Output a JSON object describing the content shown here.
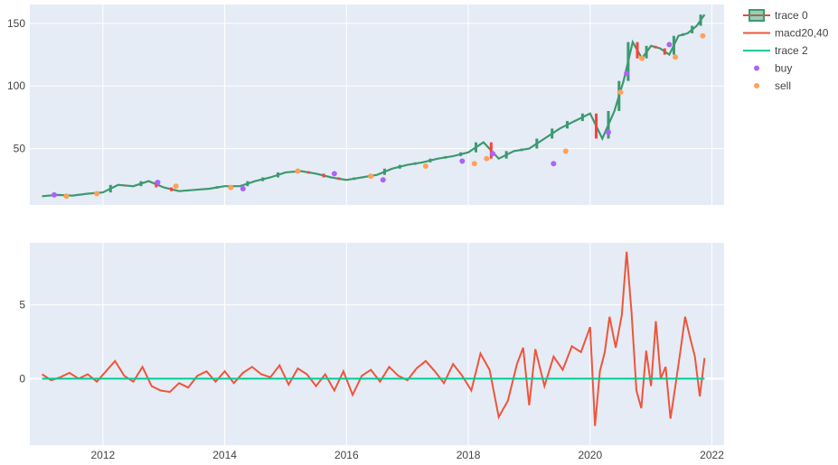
{
  "chart_data": [
    {
      "type": "line",
      "panel": "price",
      "x_ticks": [
        "2012",
        "2014",
        "2016",
        "2018",
        "2020",
        "2022"
      ],
      "y_ticks": [
        50,
        100,
        150
      ],
      "xlim": [
        2010.8,
        2022.2
      ],
      "ylim": [
        5,
        165
      ],
      "grid": true,
      "series": [
        {
          "name": "trace 0",
          "kind": "candlestick",
          "color_up": "#3d9970",
          "color_down": "#ff4136",
          "x": [
            2011.0,
            2011.25,
            2011.5,
            2011.75,
            2012.0,
            2012.25,
            2012.5,
            2012.75,
            2013.0,
            2013.25,
            2013.5,
            2013.75,
            2014.0,
            2014.25,
            2014.5,
            2014.75,
            2015.0,
            2015.25,
            2015.5,
            2015.75,
            2016.0,
            2016.25,
            2016.5,
            2016.75,
            2017.0,
            2017.25,
            2017.5,
            2017.75,
            2018.0,
            2018.25,
            2018.5,
            2018.75,
            2019.0,
            2019.25,
            2019.5,
            2019.75,
            2020.0,
            2020.2,
            2020.4,
            2020.55,
            2020.7,
            2020.85,
            2021.0,
            2021.15,
            2021.3,
            2021.45,
            2021.6,
            2021.75,
            2021.88
          ],
          "values": [
            12,
            13,
            12.5,
            14,
            15,
            21,
            20,
            24,
            19,
            16,
            17,
            18,
            20,
            20,
            24,
            27,
            31,
            32,
            30,
            27,
            25,
            27,
            29,
            34,
            37,
            39,
            42,
            44,
            47,
            55,
            42,
            48,
            50,
            58,
            66,
            72,
            78,
            58,
            80,
            104,
            135,
            122,
            132,
            130,
            125,
            140,
            142,
            148,
            157
          ]
        },
        {
          "name": "buy",
          "kind": "markers",
          "color": "#ab63fa",
          "x": [
            2011.2,
            2012.9,
            2014.3,
            2015.8,
            2016.6,
            2017.9,
            2018.4,
            2019.4,
            2020.3,
            2020.6,
            2021.3
          ],
          "values": [
            13,
            23,
            18,
            30,
            25,
            40,
            46,
            38,
            63,
            110,
            133
          ]
        },
        {
          "name": "sell",
          "kind": "markers",
          "color": "#ffa15a",
          "x": [
            2011.4,
            2011.9,
            2013.2,
            2014.1,
            2015.2,
            2016.4,
            2017.3,
            2018.1,
            2018.3,
            2019.6,
            2020.5,
            2020.85,
            2021.4,
            2021.85
          ],
          "values": [
            12,
            14,
            20,
            19,
            32,
            28,
            36,
            38,
            42,
            48,
            95,
            122,
            123,
            140
          ]
        }
      ]
    },
    {
      "type": "line",
      "panel": "indicator",
      "x_ticks": [
        "2012",
        "2014",
        "2016",
        "2018",
        "2020",
        "2022"
      ],
      "y_ticks": [
        0,
        5
      ],
      "xlim": [
        2010.8,
        2022.2
      ],
      "ylim": [
        -4.5,
        9.2
      ],
      "grid": true,
      "series": [
        {
          "name": "macd20,40",
          "color": "#ef553b",
          "x": [
            2011.0,
            2011.15,
            2011.3,
            2011.45,
            2011.6,
            2011.75,
            2011.9,
            2012.05,
            2012.2,
            2012.35,
            2012.5,
            2012.65,
            2012.8,
            2012.95,
            2013.1,
            2013.25,
            2013.4,
            2013.55,
            2013.7,
            2013.85,
            2014.0,
            2014.15,
            2014.3,
            2014.45,
            2014.6,
            2014.75,
            2014.9,
            2015.05,
            2015.2,
            2015.35,
            2015.5,
            2015.65,
            2015.8,
            2015.95,
            2016.1,
            2016.25,
            2016.4,
            2016.55,
            2016.7,
            2016.85,
            2017.0,
            2017.15,
            2017.3,
            2017.45,
            2017.6,
            2017.75,
            2017.9,
            2018.05,
            2018.2,
            2018.35,
            2018.5,
            2018.65,
            2018.8,
            2018.9,
            2019.0,
            2019.1,
            2019.25,
            2019.4,
            2019.55,
            2019.7,
            2019.85,
            2020.0,
            2020.08,
            2020.16,
            2020.24,
            2020.32,
            2020.42,
            2020.52,
            2020.6,
            2020.68,
            2020.76,
            2020.84,
            2020.92,
            2021.0,
            2021.08,
            2021.16,
            2021.24,
            2021.32,
            2021.4,
            2021.48,
            2021.56,
            2021.64,
            2021.72,
            2021.8,
            2021.88
          ],
          "values": [
            0.3,
            -0.1,
            0.1,
            0.4,
            0.0,
            0.3,
            -0.2,
            0.5,
            1.2,
            0.2,
            -0.2,
            0.8,
            -0.5,
            -0.8,
            -0.9,
            -0.3,
            -0.6,
            0.2,
            0.5,
            -0.2,
            0.5,
            -0.3,
            0.4,
            0.8,
            0.3,
            0.1,
            0.9,
            -0.4,
            0.7,
            0.3,
            -0.5,
            0.3,
            -0.8,
            0.5,
            -1.1,
            0.2,
            0.6,
            -0.2,
            0.8,
            0.2,
            -0.1,
            0.7,
            1.2,
            0.5,
            -0.3,
            1.0,
            0.2,
            -0.8,
            1.7,
            0.6,
            -2.6,
            -1.5,
            1.0,
            2.1,
            -1.8,
            2.0,
            -0.5,
            1.5,
            0.6,
            2.2,
            1.8,
            3.5,
            -3.2,
            0.5,
            1.8,
            4.2,
            2.1,
            4.3,
            8.6,
            4.5,
            -0.8,
            -2.0,
            1.9,
            -0.5,
            3.9,
            0.0,
            0.8,
            -2.7,
            -0.5,
            1.8,
            4.2,
            2.8,
            1.5,
            -1.2,
            1.4
          ]
        },
        {
          "name": "trace 2",
          "color": "#00cc96",
          "x": [
            2011.0,
            2021.88
          ],
          "values": [
            0,
            0
          ]
        }
      ]
    }
  ],
  "legend": {
    "placement": "top-right",
    "items": [
      {
        "label": "trace 0",
        "kind": "candle",
        "color_up": "#3d9970",
        "color_down": "#ff4136"
      },
      {
        "label": "macd20,40",
        "kind": "line",
        "color": "#ef553b"
      },
      {
        "label": "trace 2",
        "kind": "line",
        "color": "#00cc96"
      },
      {
        "label": "buy",
        "kind": "dot",
        "color": "#ab63fa"
      },
      {
        "label": "sell",
        "kind": "dot",
        "color": "#ffa15a"
      }
    ]
  },
  "colors": {
    "plot_bg": "#e5ecf6",
    "grid": "#ffffff",
    "axis_text": "#444444"
  }
}
